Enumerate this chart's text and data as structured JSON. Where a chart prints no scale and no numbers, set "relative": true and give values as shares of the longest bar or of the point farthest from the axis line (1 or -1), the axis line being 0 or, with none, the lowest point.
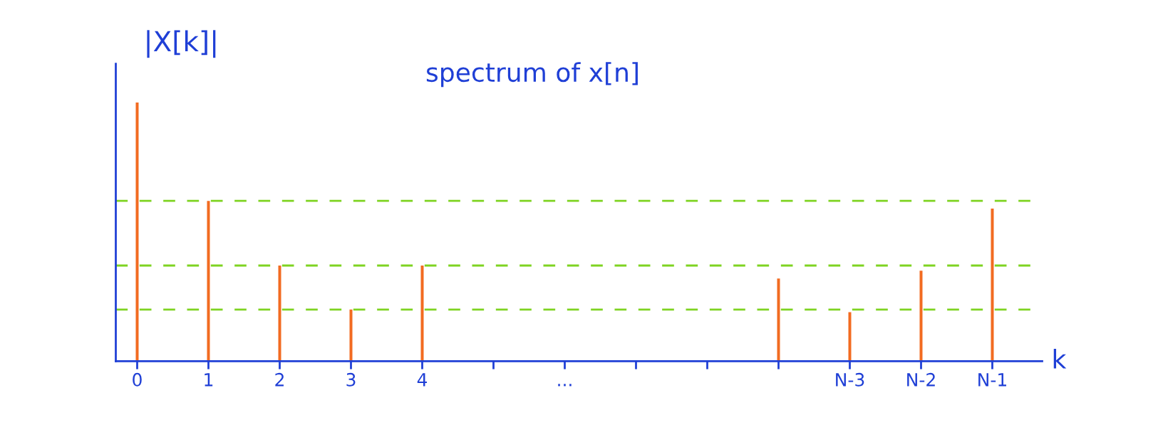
{
  "chart_data": {
    "type": "bar",
    "title": "spectrum of x[n]",
    "ylabel": "|X[k]|",
    "xlabel": "k",
    "categories": [
      "0",
      "1",
      "2",
      "3",
      "4",
      null,
      "...",
      null,
      null,
      null,
      "N-3",
      "N-2",
      "N-1"
    ],
    "values": [
      1,
      0.62,
      0.37,
      0.2,
      0.37,
      null,
      null,
      null,
      null,
      0.32,
      0.19,
      0.35,
      0.59
    ],
    "color": "#f26b21",
    "relative": true,
    "ref_lines": [
      {
        "axis": "y",
        "value": 0.62,
        "color": "#7ed321",
        "line_style": "dashed"
      },
      {
        "axis": "y",
        "value": 0.37,
        "color": "#7ed321",
        "line_style": "dashed"
      },
      {
        "axis": "y",
        "value": 0.2,
        "color": "#7ed321",
        "line_style": "dashed"
      }
    ]
  }
}
